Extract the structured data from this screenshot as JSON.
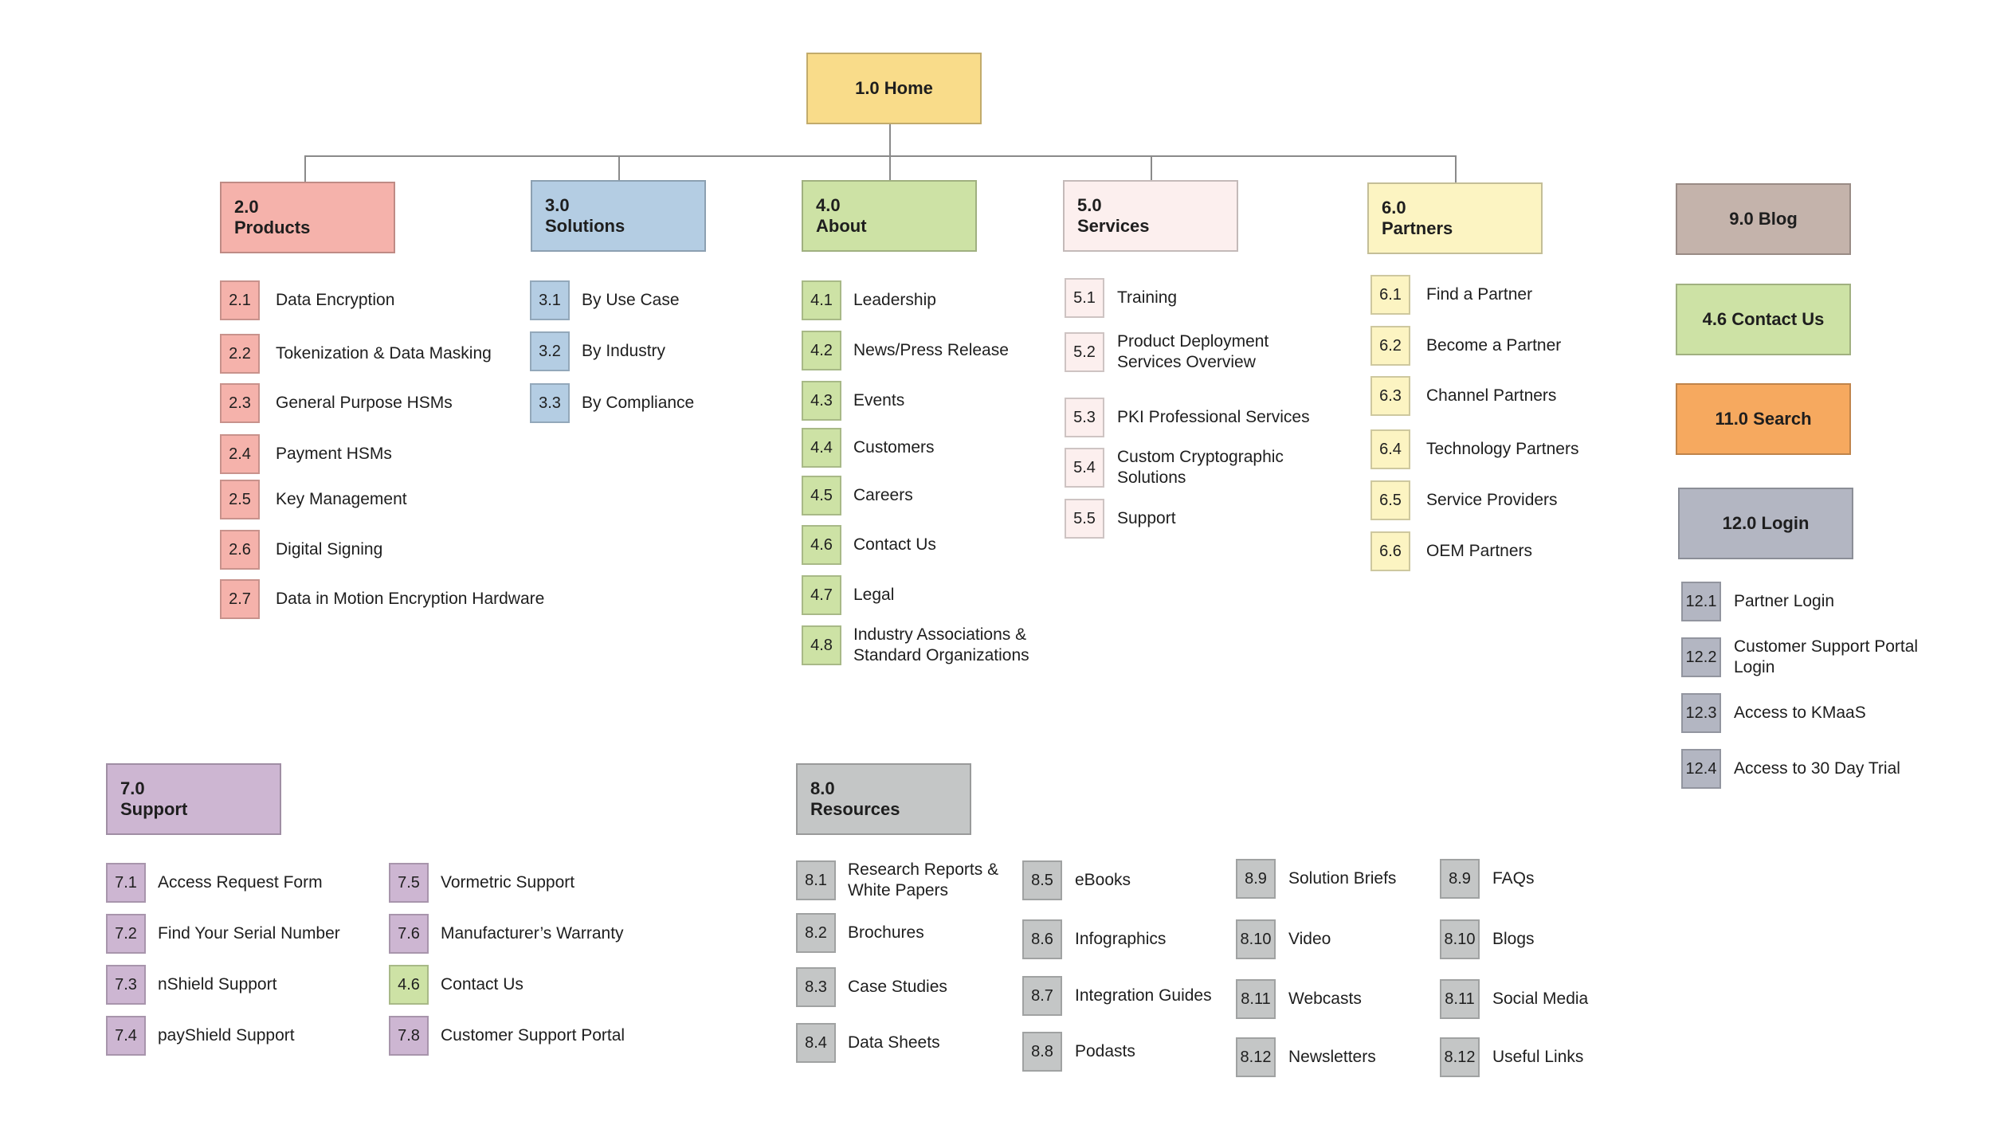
{
  "colors": {
    "home": "#f9dc8a",
    "products": "#f5b2ab",
    "solutions": "#b4cde3",
    "about": "#cde2a5",
    "services": "#fcefee",
    "partners": "#fcf4c2",
    "support": "#cdb6d2",
    "resources": "#c4c6c6",
    "blog": "#c4b3ab",
    "search": "#f6a95f",
    "login": "#b3b6c2",
    "line": "#8a8a8a"
  },
  "home": {
    "title": "1.0 Home"
  },
  "sections": [
    {
      "id": "products",
      "num": "2.0",
      "title": "Products",
      "color": "products",
      "items": [
        {
          "num": "2.1",
          "label": "Data Encryption"
        },
        {
          "num": "2.2",
          "label": "Tokenization & Data Masking"
        },
        {
          "num": "2.3",
          "label": "General Purpose HSMs"
        },
        {
          "num": "2.4",
          "label": "Payment HSMs"
        },
        {
          "num": "2.5",
          "label": "Key Management"
        },
        {
          "num": "2.6",
          "label": "Digital Signing"
        },
        {
          "num": "2.7",
          "label": "Data in Motion Encryption Hardware"
        }
      ]
    },
    {
      "id": "solutions",
      "num": "3.0",
      "title": "Solutions",
      "color": "solutions",
      "items": [
        {
          "num": "3.1",
          "label": "By Use Case"
        },
        {
          "num": "3.2",
          "label": "By Industry"
        },
        {
          "num": "3.3",
          "label": "By Compliance"
        }
      ]
    },
    {
      "id": "about",
      "num": "4.0",
      "title": "About",
      "color": "about",
      "items": [
        {
          "num": "4.1",
          "label": "Leadership"
        },
        {
          "num": "4.2",
          "label": "News/Press Release"
        },
        {
          "num": "4.3",
          "label": "Events"
        },
        {
          "num": "4.4",
          "label": "Customers"
        },
        {
          "num": "4.5",
          "label": "Careers"
        },
        {
          "num": "4.6",
          "label": "Contact Us"
        },
        {
          "num": "4.7",
          "label": "Legal"
        },
        {
          "num": "4.8",
          "label": "Industry Associations & Standard Organizations"
        }
      ]
    },
    {
      "id": "services",
      "num": "5.0",
      "title": "Services",
      "color": "services",
      "items": [
        {
          "num": "5.1",
          "label": "Training"
        },
        {
          "num": "5.2",
          "label": "Product Deployment Services Overview"
        },
        {
          "num": "5.3",
          "label": "PKI Professional Services"
        },
        {
          "num": "5.4",
          "label": "Custom Cryptographic Solutions"
        },
        {
          "num": "5.5",
          "label": "Support"
        }
      ]
    },
    {
      "id": "partners",
      "num": "6.0",
      "title": "Partners",
      "color": "partners",
      "items": [
        {
          "num": "6.1",
          "label": "Find a Partner"
        },
        {
          "num": "6.2",
          "label": "Become a Partner"
        },
        {
          "num": "6.3",
          "label": "Channel Partners"
        },
        {
          "num": "6.4",
          "label": "Technology Partners"
        },
        {
          "num": "6.5",
          "label": "Service Providers"
        },
        {
          "num": "6.6",
          "label": "OEM Partners"
        }
      ]
    },
    {
      "id": "support",
      "num": "7.0",
      "title": "Support",
      "color": "support",
      "items": [
        {
          "num": "7.1",
          "label": "Access Request Form"
        },
        {
          "num": "7.2",
          "label": "Find Your Serial Number"
        },
        {
          "num": "7.3",
          "label": "nShield Support"
        },
        {
          "num": "7.4",
          "label": "payShield Support"
        },
        {
          "num": "7.5",
          "label": "Vormetric Support"
        },
        {
          "num": "7.6",
          "label": "Manufacturer’s Warranty"
        },
        {
          "num": "4.6",
          "label": "Contact Us",
          "color": "about"
        },
        {
          "num": "7.8",
          "label": "Customer Support Portal"
        }
      ]
    },
    {
      "id": "resources",
      "num": "8.0",
      "title": "Resources",
      "color": "resources",
      "items": [
        {
          "num": "8.1",
          "label": "Research Reports & White Papers"
        },
        {
          "num": "8.2",
          "label": "Brochures"
        },
        {
          "num": "8.3",
          "label": "Case Studies"
        },
        {
          "num": "8.4",
          "label": "Data Sheets"
        },
        {
          "num": "8.5",
          "label": "eBooks"
        },
        {
          "num": "8.6",
          "label": "Infographics"
        },
        {
          "num": "8.7",
          "label": "Integration Guides"
        },
        {
          "num": "8.8",
          "label": "Podasts"
        },
        {
          "num": "8.9",
          "label": "Solution Briefs"
        },
        {
          "num": "8.10",
          "label": "Video"
        },
        {
          "num": "8.11",
          "label": "Webcasts"
        },
        {
          "num": "8.12",
          "label": "Newsletters"
        },
        {
          "num": "8.9",
          "label": "FAQs"
        },
        {
          "num": "8.10",
          "label": "Blogs"
        },
        {
          "num": "8.11",
          "label": "Social Media"
        },
        {
          "num": "8.12",
          "label": "Useful Links"
        }
      ]
    },
    {
      "id": "login",
      "num": "",
      "title": "12.0 Login",
      "color": "login",
      "items": [
        {
          "num": "12.1",
          "label": "Partner Login"
        },
        {
          "num": "12.2",
          "label": "Customer Support Portal Login"
        },
        {
          "num": "12.3",
          "label": "Access to KMaaS"
        },
        {
          "num": "12.4",
          "label": "Access to 30 Day Trial"
        }
      ]
    }
  ],
  "standalone": [
    {
      "id": "blog",
      "title": "9.0 Blog",
      "color": "blog"
    },
    {
      "id": "contact",
      "title": "4.6 Contact Us",
      "color": "about"
    },
    {
      "id": "search",
      "title": "11.0 Search",
      "color": "search"
    }
  ]
}
